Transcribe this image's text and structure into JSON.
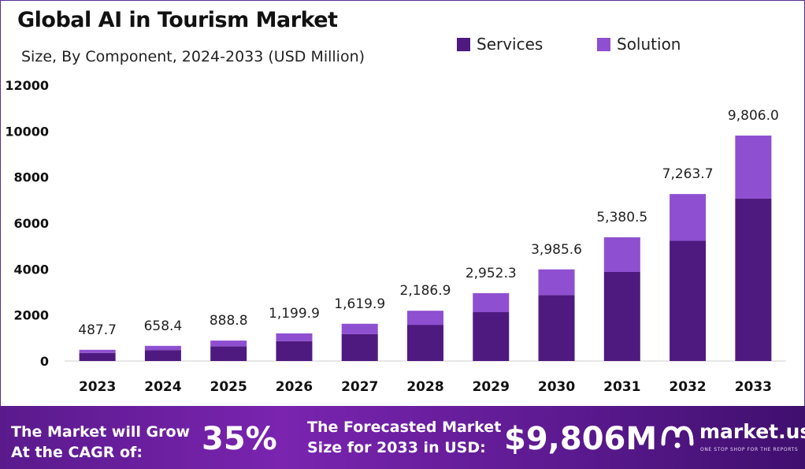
{
  "chart_data": {
    "type": "bar",
    "stacked": true,
    "title": "Global AI in Tourism Market",
    "subtitle": "Size, By Component, 2024-2033 (USD Million)",
    "categories": [
      "2023",
      "2024",
      "2025",
      "2026",
      "2027",
      "2028",
      "2029",
      "2030",
      "2031",
      "2032",
      "2033"
    ],
    "totals": [
      487.7,
      658.4,
      888.8,
      1199.9,
      1619.9,
      2186.9,
      2952.3,
      3985.6,
      5380.5,
      7263.7,
      9806.0
    ],
    "total_labels": [
      "487.7",
      "658.4",
      "888.8",
      "1,199.9",
      "1,619.9",
      "2,186.9",
      "2,952.3",
      "3,985.6",
      "5,380.5",
      "7,263.7",
      "9,806.0"
    ],
    "series": [
      {
        "name": "Services",
        "color": "#4e1a80",
        "values": [
          350,
          475,
          640,
          865,
          1170,
          1575,
          2125,
          2870,
          3875,
          5230,
          7065
        ]
      },
      {
        "name": "Solution",
        "color": "#8f4fd1",
        "values": [
          137.7,
          183.4,
          248.8,
          334.9,
          449.9,
          611.9,
          827.3,
          1115.6,
          1505.5,
          2033.7,
          2741.0
        ]
      }
    ],
    "yticks": [
      "0",
      "2000",
      "4000",
      "6000",
      "8000",
      "10000",
      "12000"
    ],
    "ylim": [
      0,
      12000
    ],
    "grid": false,
    "legend": "top-right"
  },
  "banner": {
    "cagr_line1": "The Market will Grow",
    "cagr_line2": "At the CAGR of:",
    "cagr_value": "35%",
    "forecast_line1": "The Forecasted Market",
    "forecast_line2": "Size for 2033 in USD:",
    "forecast_value": "$9,806M",
    "brand": "market.us",
    "tagline": "ONE STOP SHOP FOR THE REPORTS",
    "logo_icon": "market-us-logo-icon"
  }
}
